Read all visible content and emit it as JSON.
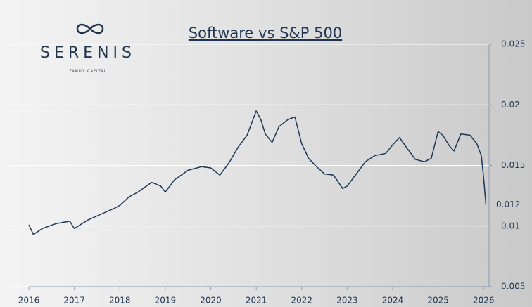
{
  "brand": {
    "name": "SERENIS",
    "tagline": "FAMILY CAPITAL"
  },
  "chart_data": {
    "type": "line",
    "title": "Software vs S&P 500",
    "x": [
      2016.0,
      2016.1,
      2016.3,
      2016.6,
      2016.9,
      2017.0,
      2017.3,
      2017.6,
      2017.9,
      2018.0,
      2018.2,
      2018.4,
      2018.7,
      2018.9,
      2019.0,
      2019.2,
      2019.5,
      2019.8,
      2020.0,
      2020.2,
      2020.4,
      2020.6,
      2020.8,
      2020.95,
      2021.0,
      2021.1,
      2021.2,
      2021.35,
      2021.5,
      2021.7,
      2021.85,
      2022.0,
      2022.15,
      2022.3,
      2022.5,
      2022.7,
      2022.9,
      2023.0,
      2023.2,
      2023.4,
      2023.6,
      2023.85,
      2024.0,
      2024.15,
      2024.3,
      2024.5,
      2024.7,
      2024.85,
      2025.0,
      2025.1,
      2025.25,
      2025.35,
      2025.5,
      2025.7,
      2025.85,
      2025.95,
      2026.0,
      2026.05
    ],
    "series": [
      {
        "name": "Software vs S&P 500",
        "color": "#1c3857",
        "values": [
          0.0101,
          0.0093,
          0.0098,
          0.0102,
          0.0104,
          0.0098,
          0.0105,
          0.011,
          0.0115,
          0.0117,
          0.0124,
          0.0128,
          0.0136,
          0.0133,
          0.0128,
          0.0138,
          0.0146,
          0.0149,
          0.0148,
          0.0142,
          0.0152,
          0.0165,
          0.0175,
          0.019,
          0.0195,
          0.0188,
          0.0176,
          0.0169,
          0.0182,
          0.0188,
          0.019,
          0.0168,
          0.0156,
          0.015,
          0.0143,
          0.0142,
          0.0131,
          0.0133,
          0.0143,
          0.0153,
          0.0158,
          0.016,
          0.0167,
          0.0173,
          0.0165,
          0.0155,
          0.0153,
          0.0156,
          0.0178,
          0.0175,
          0.0166,
          0.0162,
          0.0176,
          0.0175,
          0.0168,
          0.0158,
          0.014,
          0.0118
        ]
      }
    ],
    "end_label": "0.012",
    "xlim": [
      2016,
      2026.12
    ],
    "xticks": [
      2016,
      2017,
      2018,
      2019,
      2020,
      2021,
      2022,
      2023,
      2024,
      2025,
      2026
    ],
    "ylim": [
      0.005,
      0.025
    ],
    "yticks": [
      0.005,
      0.01,
      0.015,
      0.02,
      0.025
    ],
    "grid": true
  }
}
